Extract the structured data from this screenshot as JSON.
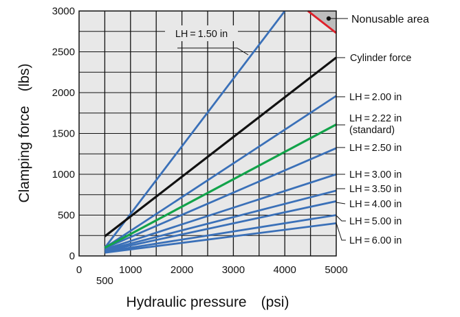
{
  "chart_data": {
    "type": "line",
    "title": "",
    "xlabel": "Hydraulic pressure　(psi)",
    "ylabel": "Clamping force　(lbs)",
    "xlim": [
      0,
      5000
    ],
    "ylim": [
      0,
      3000
    ],
    "x_ticks": [
      "0",
      "1000",
      "2000",
      "3000",
      "4000",
      "5000"
    ],
    "x_extra_tick": "500",
    "y_ticks": [
      "0",
      "500",
      "1000",
      "1500",
      "2000",
      "2500",
      "3000"
    ],
    "grid": true,
    "colors": {
      "plot_bg": "#e8e8e8",
      "grid": "#111111",
      "lh": "#3a70b8",
      "standard": "#12a34a",
      "cylinder": "#111111",
      "nonusable_edge": "#e0202a",
      "nonusable_fill": "#bdbdbd"
    },
    "nonusable_area": {
      "label": "Nonusable area",
      "x": [
        4450,
        5000
      ],
      "y": [
        3000,
        2730
      ]
    },
    "series": [
      {
        "key": "cyl",
        "name": "Cylinder force",
        "kind": "cylinder",
        "x": [
          500,
          5000
        ],
        "y": [
          240,
          2430
        ]
      },
      {
        "key": "lh150",
        "name": "LH = 1.50 in",
        "kind": "lh",
        "x": [
          500,
          4000
        ],
        "y": [
          100,
          3000
        ]
      },
      {
        "key": "lh200",
        "name": "LH = 2.00 in",
        "kind": "lh",
        "x": [
          500,
          5000
        ],
        "y": [
          100,
          1960
        ]
      },
      {
        "key": "lh222",
        "name": "LH = 2.22 in",
        "subname": "(standard)",
        "kind": "standard",
        "x": [
          500,
          5000
        ],
        "y": [
          100,
          1610
        ]
      },
      {
        "key": "lh250",
        "name": "LH = 2.50 in",
        "kind": "lh",
        "x": [
          500,
          5000
        ],
        "y": [
          95,
          1320
        ]
      },
      {
        "key": "lh300",
        "name": "LH = 3.00 in",
        "kind": "lh",
        "x": [
          500,
          5000
        ],
        "y": [
          80,
          1000
        ]
      },
      {
        "key": "lh350",
        "name": "LH = 3.50 in",
        "kind": "lh",
        "x": [
          500,
          5000
        ],
        "y": [
          70,
          800
        ]
      },
      {
        "key": "lh400",
        "name": "LH = 4.00 in",
        "kind": "lh",
        "x": [
          500,
          5000
        ],
        "y": [
          60,
          670
        ]
      },
      {
        "key": "lh500",
        "name": "LH = 5.00 in",
        "kind": "lh",
        "x": [
          500,
          5000
        ],
        "y": [
          50,
          500
        ]
      },
      {
        "key": "lh600",
        "name": "LH = 6.00 in",
        "kind": "lh",
        "x": [
          500,
          5000
        ],
        "y": [
          40,
          400
        ]
      }
    ]
  }
}
